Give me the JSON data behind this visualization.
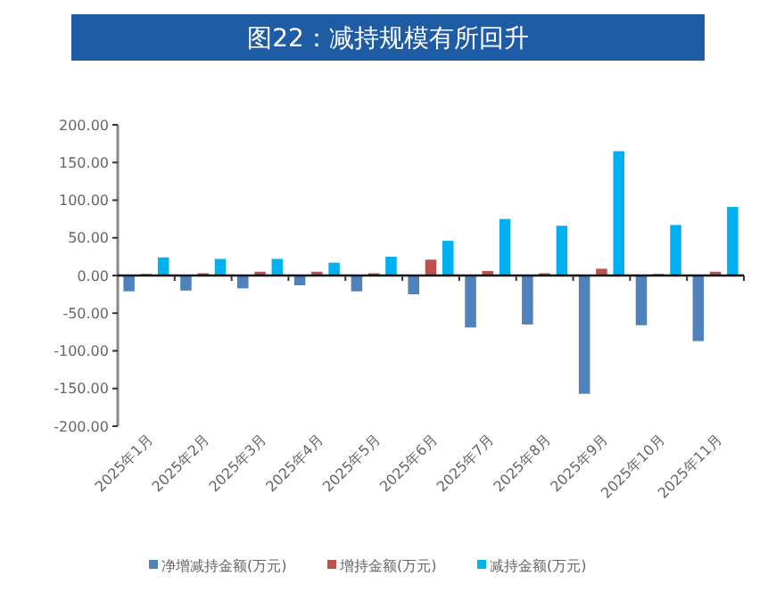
{
  "chart_data": {
    "type": "bar",
    "title": "图22：减持规模有所回升",
    "categories": [
      "2025年1月",
      "2025年2月",
      "2025年3月",
      "2025年4月",
      "2025年5月",
      "2025年6月",
      "2025年7月",
      "2025年8月",
      "2025年9月",
      "2025年10月",
      "2025年11月"
    ],
    "series": [
      {
        "name": "净增减持金额(万元)",
        "color": "#4f81bd",
        "values": [
          -21,
          -20,
          -17,
          -13,
          -21,
          -25,
          -69,
          -65,
          -157,
          -66,
          -87
        ]
      },
      {
        "name": "增持金额(万元)",
        "color": "#c0504d",
        "values": [
          2,
          3,
          5,
          5,
          3,
          21,
          6,
          3,
          9,
          2,
          5
        ]
      },
      {
        "name": "减持金额(万元)",
        "color": "#00b0f0",
        "values": [
          24,
          22,
          22,
          17,
          25,
          46,
          75,
          66,
          165,
          67,
          91
        ]
      }
    ],
    "ylim": [
      -200,
      200
    ],
    "yticks": [
      {
        "value": -200,
        "label": "-200.00"
      },
      {
        "value": -150,
        "label": "-150.00"
      },
      {
        "value": -100,
        "label": "-100.00"
      },
      {
        "value": -50,
        "label": "-50.00"
      },
      {
        "value": 0,
        "label": "0.00"
      },
      {
        "value": 50,
        "label": "50.00"
      },
      {
        "value": 100,
        "label": "100.00"
      },
      {
        "value": 150,
        "label": "150.00"
      },
      {
        "value": 200,
        "label": "200.00"
      }
    ],
    "legend": "bottom"
  }
}
